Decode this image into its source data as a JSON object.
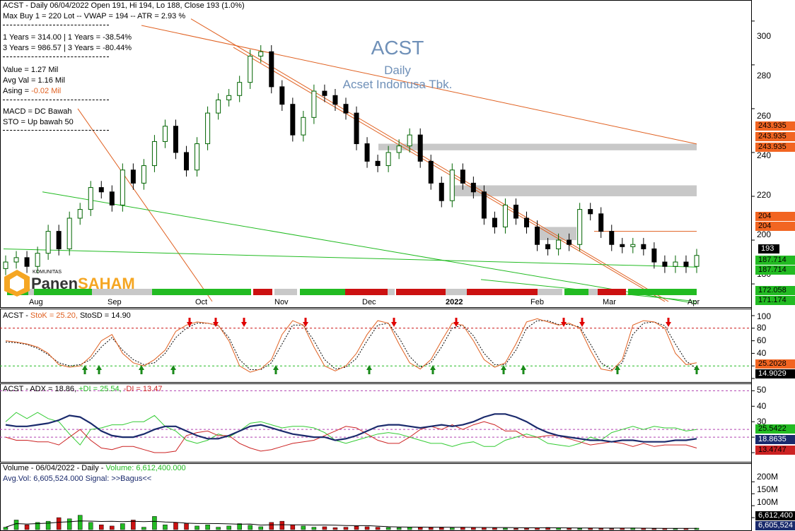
{
  "header": {
    "line1": "ACST - Daily 06/04/2022 Open 191, Hi 194, Lo 188, Close 193 (1.0%)",
    "line2": "Max Buy 1 = 220 Lot  --  VWAP = 194  --  ATR = 2.93 %",
    "line3": "1 Years  = 314.00  |  1 Years  = -38.54%",
    "line4": "3 Years  = 986.57  |  3 Years = -80.44%",
    "line5a": "Value   = 1.27 Mil",
    "line5b": "Avg Val = 1.16 Mil",
    "line5c_label": "Asing  = ",
    "line5c_value": "-0.02 Mil",
    "line6a": "MACD = DC Bawah",
    "line6b": "STO  = Up bawah 50"
  },
  "title": {
    "ticker": "ACST",
    "period": "Daily",
    "company": "Acset Indonusa Tbk."
  },
  "logo": {
    "small": "KOMUNITAS",
    "part1": "Panen",
    "part2": "SAHAM"
  },
  "colors": {
    "up": "#006400",
    "down": "#000000",
    "trend": "#e06020",
    "support": "#22bb22",
    "zone": "#c8c8c8",
    "adx": "#1a2a6c",
    "pdi": "#33cc33",
    "mdi": "#cc2222",
    "vol_up": "#22bb22",
    "vol_down": "#cc1111"
  },
  "chart_data": [
    {
      "type": "candlestick",
      "panel": "price",
      "title": "ACST",
      "ylim": [
        171,
        308
      ],
      "y_ticks": [
        "300",
        "280",
        "260",
        "240",
        "220",
        "200",
        "180"
      ],
      "x_labels": [
        "Aug",
        "Sep",
        "Oct",
        "Nov",
        "Dec",
        "2022",
        "Feb",
        "Mar",
        "Apr"
      ],
      "close": [
        190,
        192,
        188,
        194,
        204,
        196,
        210,
        214,
        224,
        222,
        216,
        232,
        226,
        234,
        245,
        252,
        240,
        232,
        244,
        258,
        264,
        266,
        272,
        284,
        286,
        270,
        262,
        248,
        256,
        268,
        266,
        262,
        258,
        244,
        236,
        234,
        240,
        243,
        248,
        236,
        226,
        218,
        232,
        226,
        222,
        210,
        206,
        216,
        210,
        206,
        198,
        196,
        200,
        198,
        214,
        212,
        204,
        198,
        197,
        198,
        196,
        190,
        188,
        190,
        188,
        193
      ],
      "right_tags": [
        {
          "value": "243.935",
          "color": "#f26522",
          "text_color": "#000"
        },
        {
          "value": "243.935",
          "color": "#f26522",
          "text_color": "#000"
        },
        {
          "value": "243.935",
          "color": "#f26522",
          "text_color": "#000"
        },
        {
          "value": "204",
          "color": "#f26522",
          "text_color": "#000"
        },
        {
          "value": "204",
          "color": "#f26522",
          "text_color": "#000"
        },
        {
          "value": "193",
          "color": "#000000",
          "text_color": "#fff"
        },
        {
          "value": "187.714",
          "color": "#22bb22",
          "text_color": "#000"
        },
        {
          "value": "187.714",
          "color": "#22bb22",
          "text_color": "#000"
        },
        {
          "value": "172.058",
          "color": "#22bb22",
          "text_color": "#000"
        },
        {
          "value": "171.174",
          "color": "#22bb22",
          "text_color": "#000"
        }
      ],
      "resistance_zones": [
        [
          241,
          244
        ],
        [
          220,
          225
        ],
        [
          200,
          206
        ]
      ]
    },
    {
      "type": "line",
      "panel": "stochastic",
      "label_prefix": "ACST - ",
      "stok_label": "StoK = 25.20,",
      "stosd_label": " StoSD = 14.90",
      "ylim": [
        0,
        100
      ],
      "y_ticks": [
        "100",
        "80",
        "60",
        "40",
        "20",
        "0"
      ],
      "series": [
        {
          "name": "StoK",
          "values": [
            60,
            58,
            55,
            50,
            40,
            22,
            18,
            20,
            35,
            60,
            70,
            40,
            25,
            20,
            30,
            45,
            75,
            85,
            90,
            88,
            85,
            60,
            20,
            10,
            15,
            30,
            70,
            92,
            85,
            50,
            20,
            12,
            20,
            40,
            70,
            92,
            88,
            55,
            25,
            15,
            30,
            60,
            88,
            85,
            60,
            30,
            18,
            25,
            55,
            90,
            95,
            90,
            85,
            88,
            80,
            45,
            15,
            12,
            30,
            85,
            92,
            90,
            80,
            40,
            22,
            25
          ]
        },
        {
          "name": "StoSD",
          "values": [
            58,
            57,
            54,
            48,
            38,
            25,
            20,
            22,
            30,
            50,
            65,
            45,
            30,
            22,
            25,
            40,
            65,
            80,
            88,
            88,
            84,
            65,
            30,
            14,
            14,
            25,
            55,
            85,
            85,
            60,
            30,
            15,
            18,
            32,
            60,
            85,
            88,
            65,
            35,
            18,
            25,
            50,
            80,
            85,
            68,
            40,
            22,
            22,
            45,
            80,
            92,
            92,
            86,
            86,
            82,
            55,
            25,
            14,
            25,
            70,
            88,
            90,
            84,
            55,
            28,
            15
          ]
        }
      ],
      "right_tags": [
        {
          "value": "25.2028",
          "color": "#f26522",
          "text_color": "#000"
        },
        {
          "value": "14.9029",
          "color": "#000000",
          "text_color": "#fff"
        }
      ]
    },
    {
      "type": "line",
      "panel": "adx",
      "label_prefix": "ACST - ADX = 18.86,",
      "pdi_label": " +DI = 25.54,",
      "mdi_label": " -DI = 13.47",
      "ylim": [
        5,
        52
      ],
      "y_ticks": [
        "50",
        "40",
        "30",
        "20",
        "10"
      ],
      "series": [
        {
          "name": "ADX",
          "values": [
            28,
            27,
            27,
            28,
            29,
            31,
            34,
            33,
            29,
            24,
            21,
            20,
            20,
            22,
            25,
            27,
            27,
            24,
            21,
            19,
            19,
            21,
            24,
            27,
            28,
            26,
            24,
            22,
            21,
            20,
            20,
            18,
            19,
            21,
            24,
            27,
            28,
            28,
            27,
            26,
            27,
            28,
            27,
            28,
            30,
            33,
            35,
            35,
            33,
            30,
            26,
            23,
            21,
            20,
            19,
            18,
            18,
            17,
            18,
            18,
            17,
            17,
            17,
            18,
            18,
            19
          ]
        },
        {
          "name": "+DI",
          "values": [
            30,
            36,
            32,
            36,
            32,
            30,
            22,
            15,
            25,
            26,
            28,
            28,
            30,
            30,
            34,
            27,
            24,
            18,
            16,
            18,
            22,
            20,
            24,
            29,
            30,
            28,
            26,
            27,
            27,
            26,
            23,
            18,
            16,
            18,
            20,
            22,
            23,
            22,
            20,
            18,
            16,
            16,
            14,
            16,
            17,
            14,
            14,
            18,
            20,
            22,
            20,
            16,
            15,
            14,
            16,
            20,
            18,
            23,
            25,
            27,
            25,
            27,
            26,
            26,
            24,
            25
          ]
        },
        {
          "name": "-DI",
          "values": [
            20,
            18,
            18,
            17,
            17,
            15,
            20,
            25,
            18,
            13,
            12,
            14,
            14,
            12,
            10,
            10,
            11,
            21,
            23,
            24,
            21,
            21,
            16,
            13,
            11,
            12,
            14,
            16,
            17,
            18,
            21,
            24,
            27,
            26,
            22,
            18,
            16,
            16,
            20,
            25,
            27,
            25,
            28,
            25,
            28,
            30,
            28,
            24,
            24,
            20,
            20,
            21,
            21,
            19,
            17,
            15,
            16,
            17,
            16,
            14,
            16,
            14,
            15,
            15,
            15,
            13
          ]
        }
      ],
      "right_tags": [
        {
          "value": "25.5422",
          "color": "#22bb22",
          "text_color": "#000"
        },
        {
          "value": "18.8635",
          "color": "#1a2a6c",
          "text_color": "#fff"
        },
        {
          "value": "13.4747",
          "color": "#cc2222",
          "text_color": "#000"
        }
      ]
    },
    {
      "type": "bar",
      "panel": "volume",
      "label_line1_prefix": "Volume - 06/04/2022 - Daily - ",
      "label_line1_value": "Volume: 6,612,400.000",
      "label_line2_prefix": "Avg.Vol: 6,605,524.000  Signal: ",
      "label_line2_value": ">>Bagus<<",
      "y_ticks": [
        "200M",
        "150M",
        "100M",
        "50M"
      ],
      "ylim": [
        0,
        260
      ],
      "values": [
        10,
        40,
        20,
        30,
        35,
        50,
        45,
        60,
        30,
        20,
        15,
        25,
        40,
        10,
        55,
        20,
        30,
        25,
        15,
        20,
        10,
        15,
        25,
        18,
        12,
        30,
        35,
        20,
        15,
        10,
        12,
        8,
        10,
        14,
        12,
        10,
        9,
        8,
        11,
        10,
        9,
        8,
        7,
        10,
        9,
        8,
        7,
        6,
        5,
        6,
        8,
        9,
        7,
        6,
        5,
        6,
        5,
        4,
        6,
        7,
        5,
        4,
        5,
        4,
        5,
        6
      ],
      "right_tags": [
        {
          "value": "6,612,400",
          "color": "#000000",
          "text_color": "#fff"
        },
        {
          "value": "6,605,524",
          "color": "#1a2a6c",
          "text_color": "#fff"
        }
      ]
    }
  ]
}
